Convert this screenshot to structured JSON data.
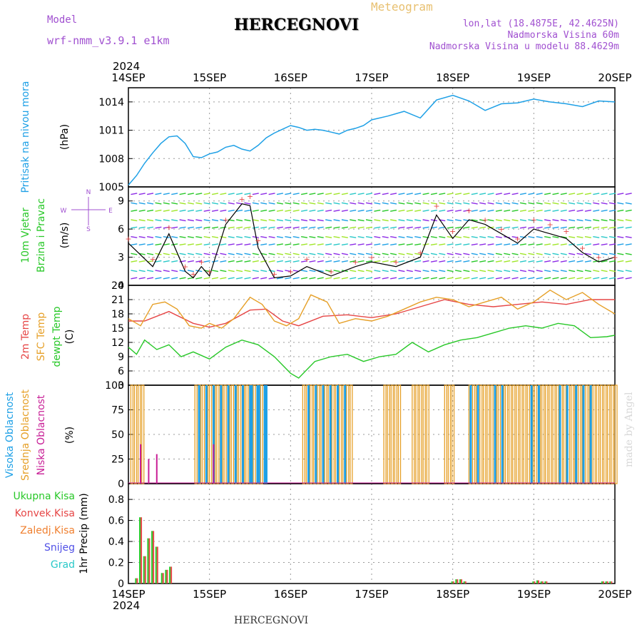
{
  "header": {
    "model_label": "Model",
    "model_name": "wrf-nmm_v3.9.1 e1km",
    "title": "HERCEGNOVI",
    "meteogram_label": "Meteogram",
    "lonlat": "lon,lat (18.4875E, 42.4625N)",
    "altitude": "Nadmorska Visina 60m",
    "model_altitude": "Nadmorska Visina u modelu 88.4629m",
    "year": "2024"
  },
  "footer": {
    "station": "HERCEGNOVI",
    "year": "2024"
  },
  "credit": "made by Angel",
  "colors": {
    "pressure": "#1ea0e6",
    "temp2m": "#e64646",
    "sfc": "#e6a028",
    "dew": "#28c828",
    "high_cloud": "#1ea0e6",
    "mid_cloud": "#e6a028",
    "low_cloud": "#c81e96",
    "rain_total": "#28c828",
    "rain_conv": "#e64646",
    "rain_frozen": "#f08030",
    "snow": "#5050e6",
    "hail": "#28c8c8",
    "wind_obs": "#000000",
    "wind_gust": "#e64646"
  },
  "chart_data": [
    {
      "type": "line",
      "id": "pressure",
      "ylabel_main": "Pritisak na nivou mora",
      "ylabel_unit": "(hPa)",
      "x_ticks": [
        "14SEP",
        "15SEP",
        "16SEP",
        "17SEP",
        "18SEP",
        "19SEP",
        "20SEP"
      ],
      "ylim": [
        1005,
        1015.5
      ],
      "y_ticks": [
        "1005",
        "1008",
        "1011",
        "1014"
      ],
      "grid": true,
      "x": [
        0,
        0.1,
        0.2,
        0.3,
        0.4,
        0.5,
        0.6,
        0.7,
        0.8,
        0.9,
        1.0,
        1.1,
        1.2,
        1.3,
        1.4,
        1.5,
        1.6,
        1.7,
        1.8,
        1.9,
        2.0,
        2.1,
        2.2,
        2.3,
        2.4,
        2.5,
        2.6,
        2.7,
        2.8,
        2.9,
        3.0,
        3.2,
        3.4,
        3.6,
        3.8,
        4.0,
        4.2,
        4.4,
        4.6,
        4.8,
        5.0,
        5.2,
        5.4,
        5.6,
        5.8,
        6.0
      ],
      "values": [
        1005.2,
        1006.2,
        1007.5,
        1008.6,
        1009.6,
        1010.3,
        1010.4,
        1009.6,
        1008.2,
        1008.1,
        1008.5,
        1008.7,
        1009.2,
        1009.4,
        1009.0,
        1008.8,
        1009.4,
        1010.2,
        1010.7,
        1011.1,
        1011.5,
        1011.3,
        1011.0,
        1011.1,
        1011.0,
        1010.8,
        1010.6,
        1011.0,
        1011.2,
        1011.5,
        1012.1,
        1012.5,
        1013.0,
        1012.3,
        1014.2,
        1014.7,
        1014.1,
        1013.1,
        1013.8,
        1013.9,
        1014.3,
        1014.0,
        1013.8,
        1013.5,
        1014.1,
        1014.0
      ]
    },
    {
      "type": "line",
      "id": "wind",
      "ylabel_main": "10m Vjetar",
      "ylabel_sub": "Brzina i Pravac",
      "ylabel_unit": "(m/s)",
      "compass": [
        "N",
        "W",
        "E",
        "S"
      ],
      "ylim": [
        0,
        10.5
      ],
      "y_ticks": [
        "0",
        "3",
        "6",
        "9"
      ],
      "grid": true,
      "series": [
        {
          "role": "speed",
          "x": [
            0,
            0.3,
            0.5,
            0.7,
            0.8,
            0.9,
            1.0,
            1.2,
            1.4,
            1.5,
            1.6,
            1.8,
            2.0,
            2.2,
            2.5,
            2.8,
            3.0,
            3.3,
            3.6,
            3.8,
            4.0,
            4.2,
            4.4,
            4.6,
            4.8,
            5.0,
            5.2,
            5.4,
            5.6,
            5.8,
            6.0
          ],
          "values": [
            4.5,
            2.0,
            5.5,
            1.5,
            0.8,
            2.0,
            1.0,
            6.5,
            8.7,
            8.5,
            4.0,
            0.8,
            1.0,
            2.0,
            1.0,
            2.0,
            2.5,
            2.0,
            3.0,
            7.5,
            5.0,
            7.0,
            6.5,
            5.5,
            4.5,
            6.0,
            5.5,
            5.0,
            3.5,
            2.5,
            3.0
          ]
        },
        {
          "role": "gust",
          "x": [
            0,
            0.3,
            0.5,
            0.7,
            0.8,
            0.9,
            1.0,
            1.2,
            1.4,
            1.5,
            1.6,
            1.8,
            2.0,
            2.2,
            2.5,
            2.8,
            3.0,
            3.3,
            3.6,
            3.8,
            4.0,
            4.2,
            4.4,
            4.6,
            4.8,
            5.0,
            5.2,
            5.4,
            5.6,
            5.8,
            6.0
          ],
          "values": [
            5.0,
            2.8,
            6.2,
            2.0,
            1.2,
            2.5,
            1.5,
            7.0,
            9.2,
            9.5,
            4.8,
            1.2,
            1.5,
            2.8,
            1.5,
            2.5,
            3.0,
            2.5,
            3.5,
            8.5,
            5.8,
            8.0,
            7.0,
            6.0,
            5.0,
            7.0,
            6.5,
            5.8,
            4.0,
            3.0,
            3.0
          ]
        }
      ]
    },
    {
      "type": "line",
      "id": "temperature",
      "ylabel_a": "2m Temp",
      "ylabel_b": "SFC Temp",
      "ylabel_c": "dewpt Temp",
      "ylabel_unit": "(C)",
      "ylim": [
        3,
        24
      ],
      "y_ticks": [
        "3",
        "6",
        "9",
        "12",
        "15",
        "18",
        "21",
        "24"
      ],
      "grid": true,
      "series": [
        {
          "name": "2m Temp",
          "x": [
            0,
            0.2,
            0.5,
            0.8,
            1.0,
            1.2,
            1.5,
            1.7,
            1.9,
            2.1,
            2.4,
            2.7,
            3.0,
            3.3,
            3.6,
            3.9,
            4.2,
            4.5,
            4.8,
            5.1,
            5.4,
            5.7,
            6.0
          ],
          "values": [
            16.5,
            16.5,
            18.5,
            16.0,
            15.2,
            16.0,
            18.8,
            19.0,
            16.5,
            15.5,
            17.5,
            17.8,
            17.2,
            18.0,
            19.5,
            21.0,
            20.0,
            19.5,
            20.0,
            20.5,
            20.0,
            21.0,
            21.0
          ]
        },
        {
          "name": "SFC Temp",
          "x": [
            0,
            0.15,
            0.3,
            0.45,
            0.6,
            0.75,
            0.9,
            1.0,
            1.15,
            1.3,
            1.5,
            1.65,
            1.8,
            1.95,
            2.1,
            2.25,
            2.45,
            2.6,
            2.8,
            3.0,
            3.2,
            3.4,
            3.6,
            3.8,
            4.0,
            4.2,
            4.4,
            4.6,
            4.8,
            5.0,
            5.2,
            5.4,
            5.6,
            5.8,
            6.0
          ],
          "values": [
            17.0,
            15.5,
            20.0,
            20.5,
            19.0,
            15.5,
            15.0,
            16.0,
            15.0,
            17.0,
            21.5,
            20.0,
            16.5,
            15.5,
            17.0,
            22.0,
            20.5,
            16.0,
            17.0,
            16.5,
            17.5,
            19.0,
            20.5,
            21.5,
            21.0,
            19.5,
            20.5,
            21.5,
            19.0,
            20.5,
            23.0,
            21.0,
            22.5,
            20.0,
            18.0
          ]
        },
        {
          "name": "dewpt Temp",
          "x": [
            0,
            0.1,
            0.2,
            0.35,
            0.5,
            0.65,
            0.8,
            1.0,
            1.2,
            1.4,
            1.6,
            1.8,
            2.0,
            2.1,
            2.3,
            2.5,
            2.7,
            2.9,
            3.1,
            3.3,
            3.5,
            3.7,
            3.9,
            4.1,
            4.3,
            4.5,
            4.7,
            4.9,
            5.1,
            5.3,
            5.5,
            5.7,
            5.9,
            6.0
          ],
          "values": [
            11.0,
            9.5,
            12.5,
            10.5,
            11.5,
            9.0,
            10.0,
            8.5,
            11.0,
            12.5,
            11.5,
            9.0,
            5.5,
            4.5,
            8.0,
            9.0,
            9.5,
            8.0,
            9.0,
            9.5,
            12.0,
            10.0,
            11.5,
            12.5,
            13.0,
            14.0,
            15.0,
            15.5,
            15.0,
            16.0,
            15.5,
            13.0,
            13.2,
            13.5
          ]
        }
      ]
    },
    {
      "type": "bar",
      "id": "cloud",
      "ylabel_a": "Visoka Oblacnost",
      "ylabel_b": "Srednja Oblacnost",
      "ylabel_c": "Niska Oblacnost",
      "ylabel_unit": "(%)",
      "ylim": [
        0,
        100
      ],
      "y_ticks": [
        "0",
        "25",
        "50",
        "75",
        "100"
      ],
      "grid": true,
      "mid_x_ranges": [
        [
          0.03,
          0.2
        ],
        [
          0.82,
          1.65
        ],
        [
          2.15,
          2.75
        ],
        [
          3.15,
          3.35
        ],
        [
          3.5,
          3.7
        ],
        [
          3.9,
          4.0
        ],
        [
          4.2,
          6.0
        ]
      ],
      "high_x_ranges": [
        [
          0.85,
          1.75
        ],
        [
          1.5,
          1.7
        ],
        [
          2.2,
          2.65
        ],
        [
          4.2,
          4.3
        ],
        [
          4.5,
          4.65
        ],
        [
          4.95,
          5.05
        ],
        [
          5.3,
          5.45
        ],
        [
          5.5,
          5.7
        ]
      ],
      "low_spikes": [
        [
          0.15,
          40
        ],
        [
          0.25,
          25
        ],
        [
          0.35,
          30
        ],
        [
          1.05,
          40
        ]
      ]
    },
    {
      "type": "bar",
      "id": "precip",
      "legend": [
        "Ukupna Kisa",
        "Konvek.Kisa",
        "Zaledj.Kisa",
        "Snijeg",
        "Grad"
      ],
      "ylabel_unit": "1hr Precip (mm)",
      "ylim": [
        0,
        0.95
      ],
      "y_ticks": [
        "0",
        "0.2",
        "0.4",
        "0.6",
        "0.8"
      ],
      "grid": true,
      "x": [
        0.1,
        0.15,
        0.2,
        0.25,
        0.3,
        0.35,
        0.42,
        0.47,
        0.52,
        4.0,
        4.05,
        4.1,
        4.15,
        5.0,
        5.05,
        5.1,
        5.15,
        5.85,
        5.9,
        5.95
      ],
      "values": [
        0.05,
        0.63,
        0.26,
        0.43,
        0.5,
        0.35,
        0.1,
        0.13,
        0.16,
        0.02,
        0.04,
        0.04,
        0.02,
        0.02,
        0.03,
        0.02,
        0.02,
        0.02,
        0.02,
        0.02
      ]
    }
  ]
}
